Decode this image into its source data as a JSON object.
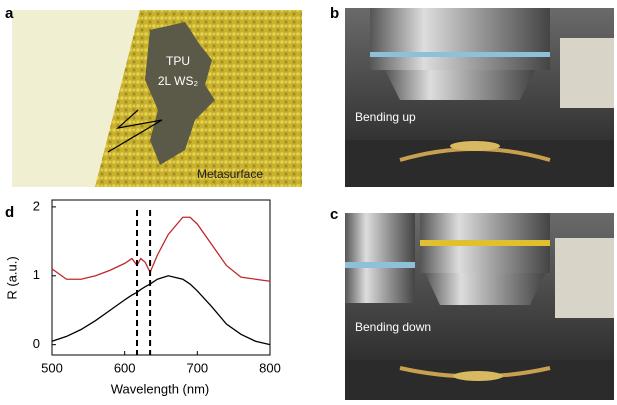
{
  "panels": [
    {
      "label": "a",
      "texts": [
        "TPU",
        "2L WS₂",
        "Metasurface"
      ]
    },
    {
      "label": "b",
      "texts": [
        "Bending up"
      ]
    },
    {
      "label": "c",
      "texts": [
        "Bending down"
      ]
    }
  ],
  "chart_data": {
    "type": "line",
    "label": "d",
    "x_label": "Wavelength (nm)",
    "y_label": "R (a.u.)",
    "x": [
      500,
      520,
      540,
      560,
      580,
      600,
      610,
      617,
      622,
      628,
      635,
      645,
      660,
      680,
      690,
      700,
      720,
      740,
      760,
      780,
      800
    ],
    "series": [
      {
        "color": "#000000",
        "values": [
          0.05,
          0.12,
          0.22,
          0.35,
          0.5,
          0.65,
          0.72,
          0.76,
          0.8,
          0.84,
          0.88,
          0.95,
          1.0,
          0.95,
          0.88,
          0.78,
          0.55,
          0.3,
          0.15,
          0.05,
          0.0
        ]
      },
      {
        "color": "#c0282d",
        "values": [
          1.1,
          0.95,
          0.95,
          1.0,
          1.08,
          1.18,
          1.25,
          1.15,
          1.25,
          1.2,
          1.05,
          1.3,
          1.6,
          1.85,
          1.85,
          1.75,
          1.45,
          1.15,
          0.98,
          0.95,
          0.92
        ]
      }
    ],
    "vlines": [
      617,
      635
    ],
    "xlim": [
      500,
      800
    ],
    "xticks": [
      500,
      600,
      700,
      800
    ],
    "ylim": [
      -0.15,
      2.1
    ],
    "yticks": [
      0,
      1,
      2
    ]
  }
}
